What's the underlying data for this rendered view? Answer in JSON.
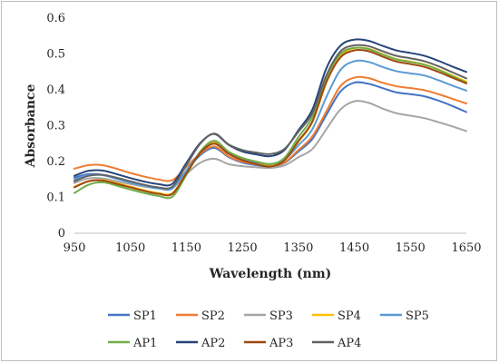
{
  "chart_data": {
    "type": "line",
    "xlabel": "Wavelength (nm)",
    "ylabel": "Absorbance",
    "xlim": [
      950,
      1650
    ],
    "ylim": [
      0,
      0.6
    ],
    "x_ticks": [
      950,
      1050,
      1150,
      1250,
      1350,
      1450,
      1550,
      1650
    ],
    "y_ticks": [
      0,
      0.1,
      0.2,
      0.3,
      0.4,
      0.5,
      0.6
    ],
    "grid": false,
    "legend_position": "bottom",
    "x": [
      950,
      975,
      1000,
      1025,
      1050,
      1075,
      1100,
      1125,
      1150,
      1175,
      1200,
      1225,
      1250,
      1275,
      1300,
      1325,
      1350,
      1375,
      1400,
      1425,
      1450,
      1475,
      1500,
      1525,
      1550,
      1575,
      1600,
      1625,
      1650
    ],
    "series": [
      {
        "name": "SP1",
        "color": "#4472C4",
        "values": [
          0.155,
          0.165,
          0.163,
          0.152,
          0.142,
          0.133,
          0.127,
          0.128,
          0.175,
          0.218,
          0.238,
          0.213,
          0.197,
          0.19,
          0.186,
          0.196,
          0.228,
          0.263,
          0.33,
          0.395,
          0.42,
          0.417,
          0.405,
          0.393,
          0.388,
          0.382,
          0.37,
          0.355,
          0.338
        ]
      },
      {
        "name": "SP2",
        "color": "#ED7D31",
        "values": [
          0.18,
          0.19,
          0.19,
          0.18,
          0.168,
          0.158,
          0.15,
          0.148,
          0.185,
          0.222,
          0.242,
          0.215,
          0.2,
          0.192,
          0.187,
          0.197,
          0.232,
          0.27,
          0.34,
          0.41,
          0.434,
          0.433,
          0.42,
          0.41,
          0.405,
          0.399,
          0.388,
          0.375,
          0.362
        ]
      },
      {
        "name": "SP3",
        "color": "#A5A5A5",
        "values": [
          0.14,
          0.153,
          0.153,
          0.145,
          0.137,
          0.13,
          0.125,
          0.127,
          0.165,
          0.197,
          0.208,
          0.193,
          0.187,
          0.184,
          0.182,
          0.189,
          0.212,
          0.235,
          0.29,
          0.345,
          0.368,
          0.364,
          0.348,
          0.335,
          0.328,
          0.321,
          0.31,
          0.298,
          0.285
        ]
      },
      {
        "name": "SP4",
        "color": "#FFC000",
        "values": [
          0.13,
          0.145,
          0.148,
          0.14,
          0.13,
          0.12,
          0.112,
          0.112,
          0.168,
          0.227,
          0.253,
          0.226,
          0.208,
          0.198,
          0.191,
          0.205,
          0.255,
          0.31,
          0.42,
          0.495,
          0.516,
          0.515,
          0.5,
          0.486,
          0.479,
          0.471,
          0.457,
          0.44,
          0.423
        ]
      },
      {
        "name": "SP5",
        "color": "#5B9BD5",
        "values": [
          0.15,
          0.162,
          0.162,
          0.152,
          0.141,
          0.132,
          0.125,
          0.125,
          0.175,
          0.225,
          0.25,
          0.223,
          0.206,
          0.198,
          0.193,
          0.205,
          0.245,
          0.29,
          0.38,
          0.455,
          0.48,
          0.478,
          0.464,
          0.452,
          0.446,
          0.44,
          0.427,
          0.412,
          0.398
        ]
      },
      {
        "name": "AP1",
        "color": "#70AD47",
        "values": [
          0.112,
          0.135,
          0.142,
          0.133,
          0.122,
          0.112,
          0.104,
          0.102,
          0.163,
          0.228,
          0.258,
          0.228,
          0.21,
          0.2,
          0.193,
          0.21,
          0.268,
          0.325,
          0.435,
          0.5,
          0.517,
          0.514,
          0.499,
          0.485,
          0.478,
          0.47,
          0.456,
          0.438,
          0.42
        ]
      },
      {
        "name": "AP2",
        "color": "#264478",
        "values": [
          0.16,
          0.174,
          0.175,
          0.165,
          0.154,
          0.144,
          0.137,
          0.138,
          0.196,
          0.252,
          0.277,
          0.247,
          0.228,
          0.22,
          0.215,
          0.232,
          0.287,
          0.345,
          0.46,
          0.523,
          0.54,
          0.537,
          0.523,
          0.51,
          0.503,
          0.495,
          0.481,
          0.465,
          0.45
        ]
      },
      {
        "name": "AP3",
        "color": "#9E480E",
        "values": [
          0.128,
          0.145,
          0.147,
          0.138,
          0.128,
          0.118,
          0.11,
          0.11,
          0.167,
          0.225,
          0.25,
          0.222,
          0.204,
          0.193,
          0.186,
          0.203,
          0.257,
          0.312,
          0.422,
          0.49,
          0.51,
          0.508,
          0.493,
          0.479,
          0.472,
          0.464,
          0.45,
          0.434,
          0.418
        ]
      },
      {
        "name": "AP4",
        "color": "#636363",
        "values": [
          0.145,
          0.16,
          0.163,
          0.155,
          0.145,
          0.135,
          0.128,
          0.13,
          0.19,
          0.25,
          0.278,
          0.248,
          0.232,
          0.225,
          0.221,
          0.235,
          0.283,
          0.335,
          0.44,
          0.507,
          0.524,
          0.522,
          0.508,
          0.495,
          0.488,
          0.48,
          0.466,
          0.449,
          0.432
        ]
      }
    ]
  }
}
